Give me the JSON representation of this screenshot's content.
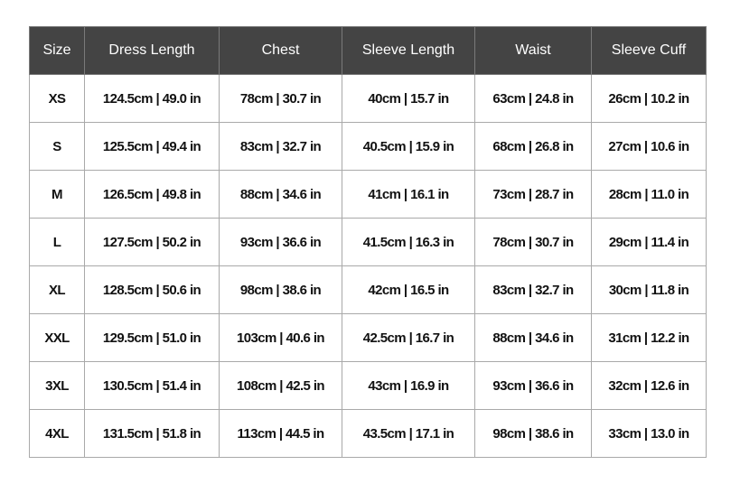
{
  "table": {
    "headers": [
      "Size",
      "Dress Length",
      "Chest",
      "Sleeve Length",
      "Waist",
      "Sleeve Cuff"
    ],
    "rows": [
      [
        "XS",
        "124.5cm | 49.0 in",
        "78cm | 30.7 in",
        "40cm | 15.7 in",
        "63cm | 24.8 in",
        "26cm | 10.2 in"
      ],
      [
        "S",
        "125.5cm | 49.4 in",
        "83cm | 32.7 in",
        "40.5cm | 15.9 in",
        "68cm | 26.8 in",
        "27cm | 10.6 in"
      ],
      [
        "M",
        "126.5cm | 49.8 in",
        "88cm | 34.6 in",
        "41cm | 16.1 in",
        "73cm | 28.7 in",
        "28cm | 11.0 in"
      ],
      [
        "L",
        "127.5cm | 50.2 in",
        "93cm | 36.6 in",
        "41.5cm | 16.3 in",
        "78cm | 30.7 in",
        "29cm | 11.4 in"
      ],
      [
        "XL",
        "128.5cm | 50.6 in",
        "98cm | 38.6 in",
        "42cm | 16.5 in",
        "83cm | 32.7 in",
        "30cm | 11.8 in"
      ],
      [
        "XXL",
        "129.5cm | 51.0 in",
        "103cm | 40.6 in",
        "42.5cm | 16.7 in",
        "88cm | 34.6 in",
        "31cm | 12.2 in"
      ],
      [
        "3XL",
        "130.5cm | 51.4 in",
        "108cm | 42.5 in",
        "43cm | 16.9 in",
        "93cm | 36.6 in",
        "32cm | 12.6 in"
      ],
      [
        "4XL",
        "131.5cm | 51.8 in",
        "113cm | 44.5 in",
        "43.5cm | 17.1 in",
        "98cm | 38.6 in",
        "33cm | 13.0 in"
      ]
    ]
  }
}
